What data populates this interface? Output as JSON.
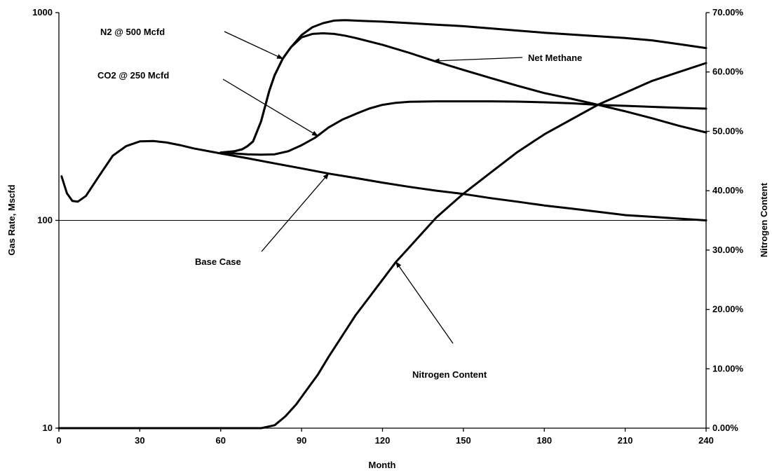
{
  "chart_data": {
    "type": "line",
    "title": "",
    "xlabel": "Month",
    "ylabel": "Gas Rate, Mscfd",
    "y2label": "Nitrogen Content",
    "xlim": [
      0,
      240
    ],
    "ylim": [
      10,
      1000
    ],
    "y_scale": "log",
    "y2lim": [
      0,
      0.7
    ],
    "x_ticks": [
      0,
      30,
      60,
      90,
      120,
      150,
      180,
      210,
      240
    ],
    "x_tick_labels": [
      "0",
      "30",
      "60",
      "90",
      "120",
      "150",
      "180",
      "210",
      "240"
    ],
    "y_ticks": [
      10,
      100,
      1000
    ],
    "y_tick_labels": [
      "10",
      "100",
      "1000"
    ],
    "y2_ticks": [
      0,
      0.1,
      0.2,
      0.3,
      0.4,
      0.5,
      0.6,
      0.7
    ],
    "y2_tick_labels": [
      "0.00%",
      "10.00%",
      "20.00%",
      "30.00%",
      "40.00%",
      "50.00%",
      "60.00%",
      "70.00%"
    ],
    "grid": "horizontal line at 100",
    "legend": "none",
    "series": [
      {
        "name": "Base Case",
        "axis": "left",
        "x": [
          1,
          3,
          5,
          7,
          10,
          14,
          20,
          25,
          30,
          35,
          40,
          45,
          50,
          60,
          70,
          80,
          90,
          100,
          110,
          120,
          130,
          140,
          150,
          160,
          170,
          180,
          190,
          200,
          210,
          220,
          230,
          240
        ],
        "values": [
          163,
          135,
          124,
          123,
          131,
          157,
          205,
          228,
          240,
          241,
          237,
          230,
          222,
          210,
          199,
          188,
          178,
          168,
          160,
          152,
          145,
          139,
          134,
          128,
          123,
          118,
          114,
          110,
          106,
          104,
          102,
          100
        ]
      },
      {
        "name": "N2 @ 500 Mcfd",
        "axis": "left",
        "x": [
          60,
          65,
          68,
          70,
          72,
          75,
          78,
          80,
          83,
          86,
          90,
          94,
          98,
          102,
          106,
          110,
          120,
          130,
          140,
          150,
          160,
          170,
          180,
          190,
          200,
          210,
          220,
          230,
          240
        ],
        "values": [
          212,
          215,
          220,
          228,
          240,
          300,
          420,
          500,
          600,
          680,
          780,
          850,
          890,
          915,
          920,
          915,
          905,
          890,
          875,
          860,
          840,
          820,
          800,
          785,
          770,
          755,
          735,
          705,
          675
        ]
      },
      {
        "name": "Net Methane",
        "axis": "left",
        "x": [
          60,
          65,
          68,
          70,
          72,
          75,
          78,
          80,
          83,
          86,
          90,
          94,
          98,
          102,
          106,
          110,
          120,
          130,
          140,
          150,
          160,
          170,
          180,
          190,
          200,
          210,
          220,
          230,
          240
        ],
        "values": [
          212,
          215,
          220,
          228,
          240,
          300,
          420,
          500,
          600,
          680,
          760,
          790,
          795,
          790,
          775,
          755,
          700,
          640,
          580,
          530,
          485,
          445,
          410,
          385,
          360,
          335,
          310,
          285,
          265
        ]
      },
      {
        "name": "CO2 @ 250 Mcfd",
        "axis": "left",
        "x": [
          60,
          65,
          70,
          75,
          80,
          85,
          90,
          95,
          100,
          105,
          110,
          115,
          120,
          125,
          130,
          140,
          150,
          160,
          170,
          180,
          190,
          200,
          210,
          220,
          230,
          240
        ],
        "values": [
          212,
          210,
          208,
          207,
          208,
          215,
          230,
          250,
          280,
          305,
          325,
          345,
          360,
          368,
          372,
          374,
          374,
          374,
          373,
          370,
          366,
          360,
          356,
          352,
          348,
          345
        ]
      },
      {
        "name": "Nitrogen Content",
        "axis": "right",
        "x": [
          0,
          75,
          80,
          84,
          88,
          92,
          96,
          100,
          105,
          110,
          115,
          120,
          125,
          130,
          135,
          140,
          145,
          150,
          160,
          170,
          180,
          190,
          200,
          210,
          220,
          230,
          240
        ],
        "values": [
          0,
          0,
          0.005,
          0.02,
          0.04,
          0.065,
          0.09,
          0.12,
          0.155,
          0.19,
          0.22,
          0.25,
          0.28,
          0.305,
          0.33,
          0.355,
          0.375,
          0.395,
          0.43,
          0.465,
          0.495,
          0.52,
          0.545,
          0.565,
          0.585,
          0.6,
          0.615
        ]
      }
    ],
    "annotations": [
      {
        "label": "N2 @ 500 Mcfd",
        "target_series": "N2 @ 500 Mcfd",
        "x": 83,
        "y": 600
      },
      {
        "label": "Net Methane",
        "target_series": "Net Methane",
        "x": 139,
        "y": 585
      },
      {
        "label": "CO2 @ 250 Mcfd",
        "target_series": "CO2 @ 250 Mcfd",
        "x": 96,
        "y": 255
      },
      {
        "label": "Base Case",
        "target_series": "Base Case",
        "x": 100,
        "y": 168
      },
      {
        "label": "Nitrogen Content",
        "target_series": "Nitrogen Content",
        "x": 125,
        "y2": 0.28
      }
    ]
  }
}
